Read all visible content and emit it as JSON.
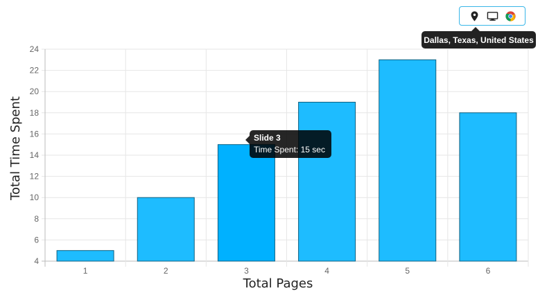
{
  "chart_data": {
    "type": "bar",
    "categories": [
      "1",
      "2",
      "3",
      "4",
      "5",
      "6"
    ],
    "values": [
      5,
      10,
      15,
      19,
      23,
      18
    ],
    "xlabel": "Total Pages",
    "ylabel": "Total Time Spent",
    "ylim": [
      4,
      24
    ],
    "yticks": [
      4,
      6,
      8,
      10,
      12,
      14,
      16,
      18,
      20,
      22,
      24
    ],
    "grid": true,
    "bar_color": "#1ebcff",
    "bar_hover_color": "#00b1ff",
    "bar_border_color": "#10607f",
    "highlighted_index": 2
  },
  "tooltip": {
    "title": "Slide 3",
    "line_prefix": "Time Spent",
    "line_value": "15 sec"
  },
  "info": {
    "location": "Dallas, Texas, United States",
    "icons": [
      "location-pin-icon",
      "desktop-icon",
      "chrome-icon"
    ]
  }
}
